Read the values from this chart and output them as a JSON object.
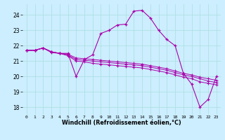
{
  "title": "",
  "xlabel": "Windchill (Refroidissement éolien,°C)",
  "ylabel": "",
  "bg_color": "#cceeff",
  "line_color": "#aa00aa",
  "grid_color": "#aadddd",
  "xlim": [
    -0.5,
    23.5
  ],
  "ylim": [
    17.5,
    24.7
  ],
  "yticks": [
    18,
    19,
    20,
    21,
    22,
    23,
    24
  ],
  "xticks": [
    0,
    1,
    2,
    3,
    4,
    5,
    6,
    7,
    8,
    9,
    10,
    11,
    12,
    13,
    14,
    15,
    16,
    17,
    18,
    19,
    20,
    21,
    22,
    23
  ],
  "series": {
    "line1": {
      "x": [
        0,
        1,
        2,
        3,
        4,
        5,
        6,
        7,
        8,
        9,
        10,
        11,
        12,
        13,
        14,
        15,
        16,
        17,
        18,
        19,
        20,
        21,
        22,
        23
      ],
      "y": [
        21.7,
        21.7,
        21.85,
        21.6,
        21.5,
        21.5,
        20.0,
        21.1,
        21.4,
        22.8,
        23.0,
        23.35,
        23.4,
        24.25,
        24.3,
        23.8,
        23.0,
        22.4,
        22.0,
        20.2,
        19.5,
        18.0,
        18.5,
        20.0
      ]
    },
    "line2": {
      "x": [
        0,
        1,
        2,
        3,
        4,
        5,
        6,
        7,
        8,
        9,
        10,
        11,
        12,
        13,
        14,
        15,
        16,
        17,
        18,
        19,
        20,
        21,
        22,
        23
      ],
      "y": [
        21.7,
        21.7,
        21.85,
        21.6,
        21.5,
        21.45,
        21.2,
        21.15,
        21.1,
        21.05,
        21.0,
        20.95,
        20.9,
        20.85,
        20.8,
        20.7,
        20.6,
        20.5,
        20.35,
        20.2,
        20.1,
        19.95,
        19.85,
        19.75
      ]
    },
    "line3": {
      "x": [
        0,
        1,
        2,
        3,
        4,
        5,
        6,
        7,
        8,
        9,
        10,
        11,
        12,
        13,
        14,
        15,
        16,
        17,
        18,
        19,
        20,
        21,
        22,
        23
      ],
      "y": [
        21.7,
        21.7,
        21.85,
        21.6,
        21.5,
        21.4,
        21.1,
        21.05,
        21.0,
        20.95,
        20.9,
        20.85,
        20.8,
        20.75,
        20.7,
        20.6,
        20.5,
        20.4,
        20.25,
        20.1,
        20.0,
        19.85,
        19.7,
        19.6
      ]
    },
    "line4": {
      "x": [
        0,
        1,
        2,
        3,
        4,
        5,
        6,
        7,
        8,
        9,
        10,
        11,
        12,
        13,
        14,
        15,
        16,
        17,
        18,
        19,
        20,
        21,
        22,
        23
      ],
      "y": [
        21.7,
        21.7,
        21.85,
        21.55,
        21.5,
        21.35,
        21.0,
        20.95,
        20.85,
        20.8,
        20.75,
        20.7,
        20.65,
        20.6,
        20.55,
        20.45,
        20.35,
        20.25,
        20.1,
        19.95,
        19.85,
        19.65,
        19.55,
        19.45
      ]
    }
  }
}
